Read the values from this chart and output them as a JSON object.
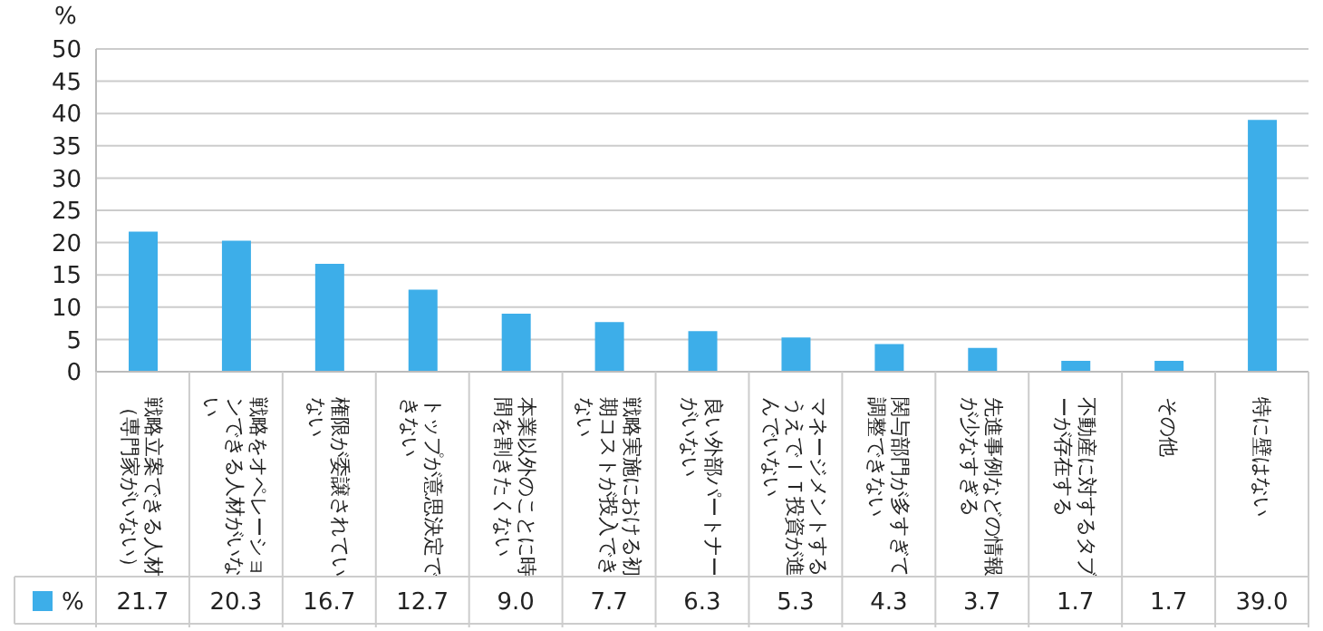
{
  "chart_data": {
    "type": "bar",
    "ylabel": "%",
    "categories": [
      "戦略立案できる人材（専門家がいない）",
      "戦略をオペレーションできる人材がいない",
      "権限が委譲されていない",
      "トップが意思決定できない",
      "本業以外のことに時間を割きたくない",
      "戦略実施における初期コストが投入できない",
      "良い外部パートナーがいない",
      "マネージメントするうえでＩＴ投資が進んでいない",
      "関与部門が多すぎて調整できない",
      "先進事例などの情報が少なすぎる",
      "不動産に対するタブーが存在する",
      "その他",
      "特に壁はない"
    ],
    "series": [
      {
        "name": "%",
        "color": "#3daee9",
        "values": [
          21.7,
          20.3,
          16.7,
          12.7,
          9.0,
          7.7,
          6.3,
          5.3,
          4.3,
          3.7,
          1.7,
          1.7,
          39.0
        ],
        "value_labels": [
          "21.7",
          "20.3",
          "16.7",
          "12.7",
          "9.0",
          "7.7",
          "6.3",
          "5.3",
          "4.3",
          "3.7",
          "1.7",
          "1.7",
          "39.0"
        ]
      }
    ],
    "ylim": [
      0,
      50
    ],
    "yticks": [
      0,
      5,
      10,
      15,
      20,
      25,
      30,
      35,
      40,
      45,
      50
    ],
    "grid": "y",
    "legend": "bottom"
  }
}
